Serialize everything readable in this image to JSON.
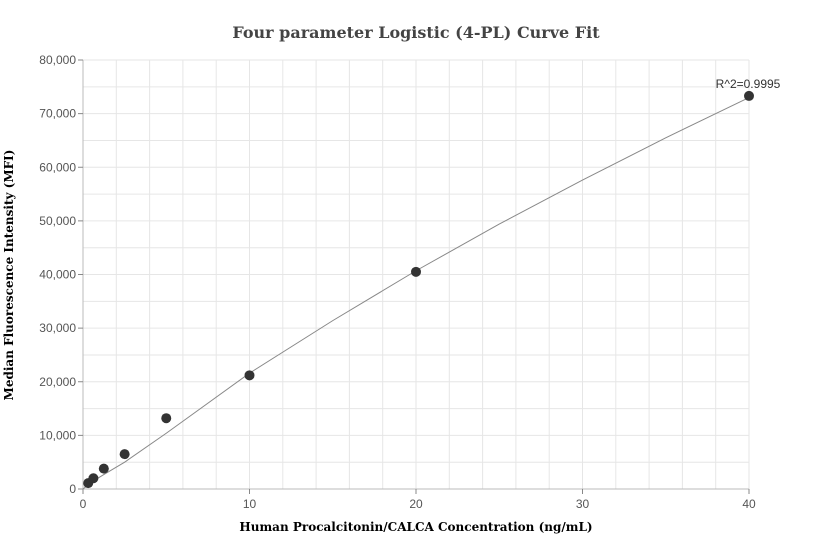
{
  "chart_data": {
    "type": "scatter",
    "title": "Four parameter Logistic (4-PL) Curve Fit",
    "xlabel": "Human Procalcitonin/CALCA Concentration (ng/mL)",
    "ylabel": "Median Fluorescence Intensity (MFI)",
    "xlim": [
      0,
      40
    ],
    "ylim": [
      0,
      80000
    ],
    "x_ticks": [
      0,
      10,
      20,
      30,
      40
    ],
    "y_ticks": [
      0,
      10000,
      20000,
      30000,
      40000,
      50000,
      60000,
      70000,
      80000
    ],
    "x_tick_labels": [
      "0",
      "10",
      "20",
      "30",
      "40"
    ],
    "y_tick_labels": [
      "0",
      "10,000",
      "20,000",
      "30,000",
      "40,000",
      "50,000",
      "60,000",
      "70,000",
      "80,000"
    ],
    "grid": true,
    "points": [
      {
        "x": 0.3125,
        "y": 1100
      },
      {
        "x": 0.625,
        "y": 2000
      },
      {
        "x": 1.25,
        "y": 3800
      },
      {
        "x": 2.5,
        "y": 6500
      },
      {
        "x": 5,
        "y": 13200
      },
      {
        "x": 10,
        "y": 21200
      },
      {
        "x": 20,
        "y": 40500
      },
      {
        "x": 40,
        "y": 73300
      }
    ],
    "fit_curve": {
      "x": [
        0,
        0.3125,
        0.625,
        1.25,
        2.5,
        5,
        10,
        15,
        20,
        25,
        30,
        35,
        40
      ],
      "y": [
        0,
        800,
        1500,
        2700,
        5000,
        10400,
        21600,
        31400,
        40700,
        49400,
        57600,
        65500,
        73000
      ]
    },
    "annotation": "R^2=0.9995",
    "colors": {
      "point": "#333333",
      "curve": "#888888",
      "grid": "#e6e6e6",
      "axis": "#bbbbbb"
    }
  }
}
